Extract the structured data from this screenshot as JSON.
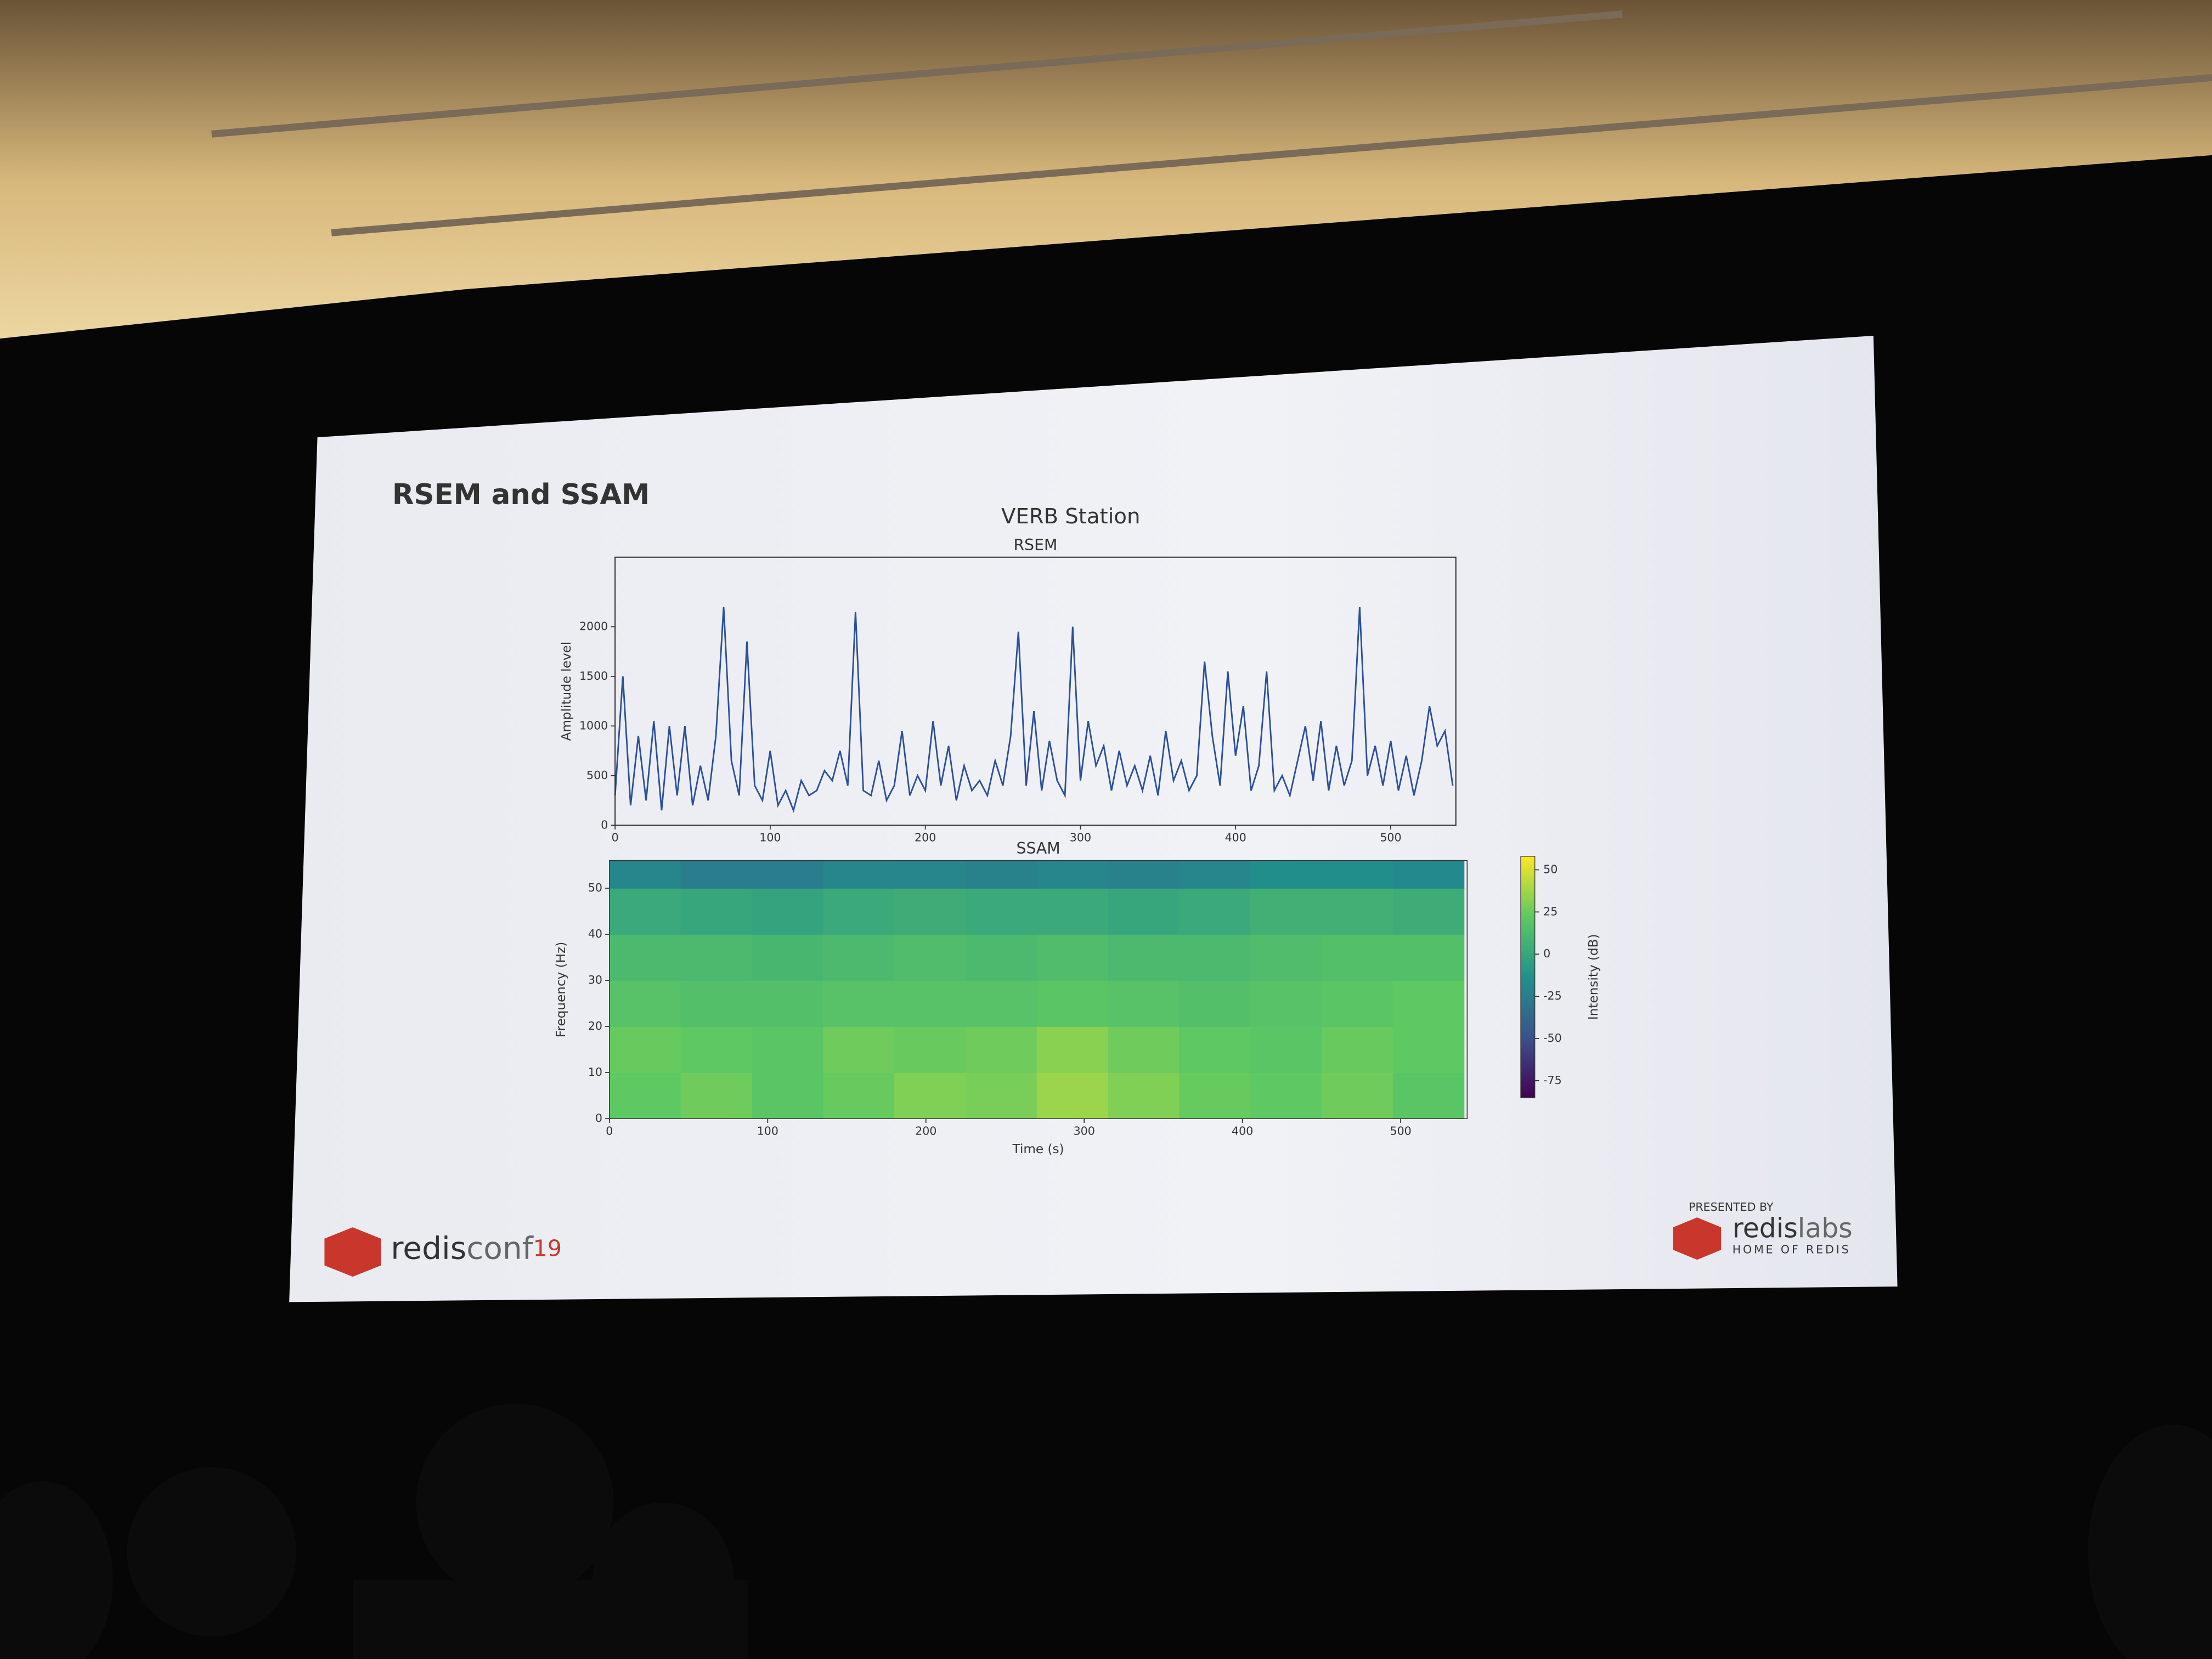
{
  "slide": {
    "title": "RSEM and SSAM",
    "figure_title": "VERB Station",
    "logo_left": {
      "redis": "redis",
      "conf": "conf",
      "year": "19"
    },
    "logo_right": {
      "presented_by": "PRESENTED BY",
      "redis": "redis",
      "labs": "labs",
      "tagline": "HOME OF REDIS"
    }
  },
  "chart_data": [
    {
      "type": "line",
      "title": "RSEM",
      "ylabel": "Amplitude level",
      "xlim": [
        0,
        542
      ],
      "ylim": [
        0,
        2700
      ],
      "xticks": [
        0,
        100,
        200,
        300,
        400,
        500
      ],
      "yticks": [
        0,
        500,
        1000,
        1500,
        2000
      ],
      "series": [
        {
          "color": "#2b4f9a",
          "x": [
            0,
            5,
            10,
            15,
            20,
            25,
            30,
            35,
            40,
            45,
            50,
            55,
            60,
            65,
            70,
            75,
            80,
            85,
            90,
            95,
            100,
            105,
            110,
            115,
            120,
            125,
            130,
            135,
            140,
            145,
            150,
            155,
            160,
            165,
            170,
            175,
            180,
            185,
            190,
            195,
            200,
            205,
            210,
            215,
            220,
            225,
            230,
            235,
            240,
            245,
            250,
            255,
            260,
            265,
            270,
            275,
            280,
            285,
            290,
            295,
            300,
            305,
            310,
            315,
            320,
            325,
            330,
            335,
            340,
            345,
            350,
            355,
            360,
            365,
            370,
            375,
            380,
            385,
            390,
            395,
            400,
            405,
            410,
            415,
            420,
            425,
            430,
            435,
            440,
            445,
            450,
            455,
            460,
            465,
            470,
            475,
            480,
            485,
            490,
            495,
            500,
            505,
            510,
            515,
            520,
            525,
            530,
            535,
            540
          ],
          "values": [
            300,
            1500,
            200,
            900,
            250,
            1050,
            150,
            1000,
            300,
            1000,
            200,
            600,
            250,
            900,
            2200,
            650,
            300,
            1850,
            400,
            250,
            750,
            200,
            350,
            150,
            450,
            300,
            350,
            550,
            450,
            750,
            400,
            2150,
            350,
            300,
            650,
            250,
            400,
            950,
            300,
            500,
            350,
            1050,
            400,
            800,
            250,
            600,
            350,
            450,
            300,
            650,
            400,
            900,
            1950,
            400,
            1150,
            350,
            850,
            450,
            300,
            2000,
            450,
            1050,
            600,
            800,
            350,
            750,
            400,
            600,
            350,
            700,
            300,
            950,
            450,
            650,
            350,
            500,
            1650,
            900,
            400,
            1550,
            700,
            1200,
            350,
            600,
            1550,
            350,
            500,
            300,
            650,
            1000,
            450,
            1050,
            350,
            800,
            400,
            650,
            2200,
            500,
            800,
            400,
            850,
            350,
            700,
            300,
            650,
            1200,
            800,
            950,
            400
          ]
        }
      ]
    },
    {
      "type": "heatmap",
      "title": "SSAM",
      "xlabel": "Time (s)",
      "ylabel": "Frequency (Hz)",
      "xlim": [
        0,
        542
      ],
      "ylim": [
        0,
        56
      ],
      "xticks": [
        0,
        100,
        200,
        300,
        400,
        500
      ],
      "yticks": [
        0,
        10,
        20,
        30,
        40,
        50
      ],
      "xbins": [
        0,
        45,
        90,
        135,
        180,
        225,
        270,
        315,
        360,
        405,
        450,
        495,
        540
      ],
      "ybins": [
        0,
        10,
        20,
        30,
        40,
        50,
        56
      ],
      "values": [
        [
          22,
          26,
          20,
          24,
          30,
          28,
          36,
          30,
          24,
          22,
          26,
          20
        ],
        [
          24,
          22,
          20,
          26,
          24,
          26,
          32,
          26,
          22,
          20,
          24,
          22
        ],
        [
          18,
          16,
          16,
          18,
          18,
          18,
          20,
          18,
          16,
          18,
          20,
          22
        ],
        [
          12,
          12,
          10,
          12,
          14,
          12,
          14,
          12,
          12,
          14,
          16,
          16
        ],
        [
          2,
          0,
          -2,
          2,
          4,
          2,
          2,
          0,
          2,
          6,
          6,
          4
        ],
        [
          -20,
          -25,
          -25,
          -20,
          -20,
          -22,
          -20,
          -22,
          -20,
          -15,
          -15,
          -18
        ]
      ],
      "colorbar": {
        "label": "Intensity (dB)",
        "colormap": "viridis",
        "clim": [
          -85,
          58
        ],
        "ticks": [
          -75,
          -50,
          -25,
          0,
          25,
          50
        ]
      }
    }
  ]
}
